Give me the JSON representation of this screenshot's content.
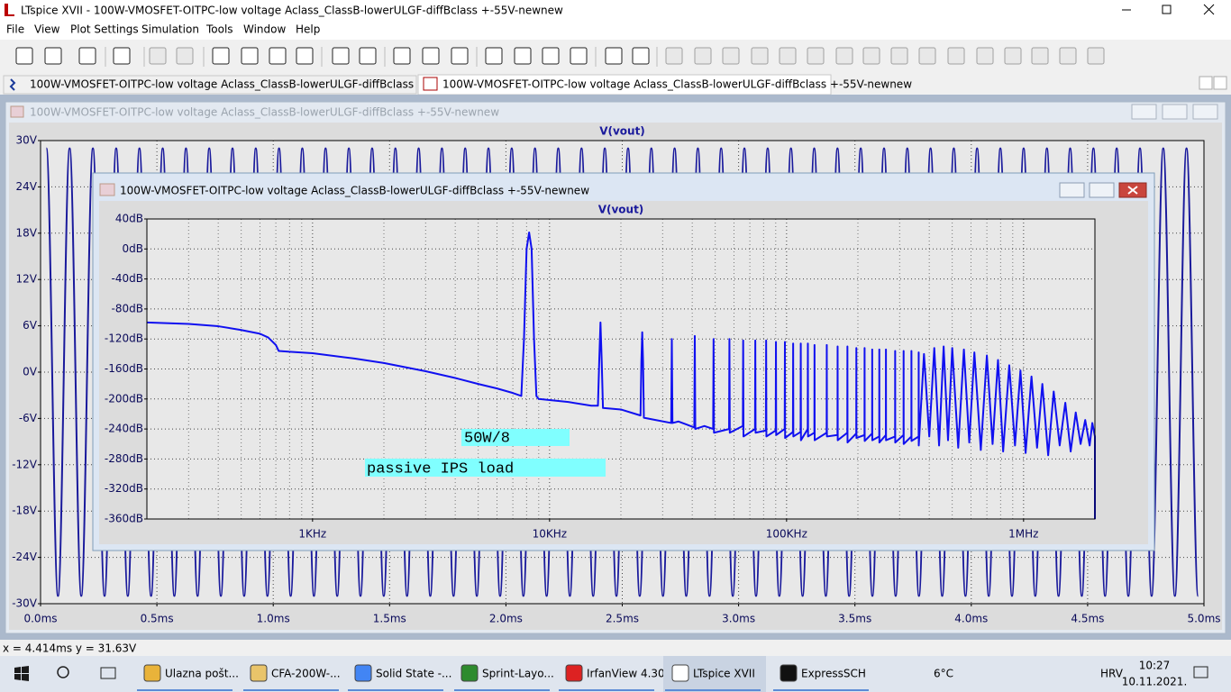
{
  "window": {
    "title": "LTspice XVII - 100W-VMOSFET-OITPC-low voltage Aclass_ClassB-lowerULGF-diffBclass +-55V-newnew"
  },
  "menu": [
    "File",
    "View",
    "Plot Settings",
    "Simulation",
    "Tools",
    "Window",
    "Help"
  ],
  "tabs": [
    "100W-VMOSFET-OITPC-low voltage Aclass_ClassB-lowerULGF-diffBclass +-55V-newnew",
    "100W-VMOSFET-OITPC-low voltage Aclass_ClassB-lowerULGF-diffBclass +-55V-newnew"
  ],
  "time_plot": {
    "window_title": "100W-VMOSFET-OITPC-low voltage Aclass_ClassB-lowerULGF-diffBclass +-55V-newnew",
    "chart_data": {
      "type": "line",
      "title": "V(vout)",
      "color": "#1a1a9c",
      "smooth": true,
      "grid": true,
      "x": [
        0.025,
        0.075,
        0.125,
        0.175,
        0.225,
        0.275,
        0.325,
        0.375,
        0.425,
        0.475,
        0.525,
        0.575,
        0.625,
        0.675,
        0.725,
        0.775,
        0.825,
        0.875,
        0.925,
        0.975,
        1.025,
        1.075,
        1.125,
        1.175,
        1.225,
        1.275,
        1.325,
        1.375,
        1.425,
        1.475,
        1.525,
        1.575,
        1.625,
        1.675,
        1.725,
        1.775,
        1.825,
        1.875,
        1.925,
        1.975,
        2.025,
        2.075,
        2.125,
        2.175,
        2.225,
        2.275,
        2.325,
        2.375,
        2.425,
        2.475,
        2.525,
        2.575,
        2.625,
        2.675,
        2.725,
        2.775,
        2.825,
        2.875,
        2.925,
        2.975,
        3.025,
        3.075,
        3.125,
        3.175,
        3.225,
        3.275,
        3.325,
        3.375,
        3.425,
        3.475,
        3.525,
        3.575,
        3.625,
        3.675,
        3.725,
        3.775,
        3.825,
        3.875,
        3.925,
        3.975,
        4.025,
        4.075,
        4.125,
        4.175,
        4.225,
        4.275,
        4.325,
        4.375,
        4.425,
        4.475,
        4.525,
        4.575,
        4.625,
        4.675,
        4.725,
        4.775,
        4.825,
        4.875,
        4.925,
        4.975
      ],
      "values": [
        29,
        -29,
        29,
        -29,
        29,
        -29,
        29,
        -29,
        29,
        -29,
        29,
        -29,
        29,
        -29,
        29,
        -29,
        29,
        -29,
        29,
        -29,
        29,
        -29,
        29,
        -29,
        29,
        -29,
        29,
        -29,
        29,
        -29,
        29,
        -29,
        29,
        -29,
        29,
        -29,
        29,
        -29,
        29,
        -29,
        29,
        -29,
        29,
        -29,
        29,
        -29,
        29,
        -29,
        29,
        -29,
        29,
        -29,
        29,
        -29,
        29,
        -29,
        29,
        -29,
        29,
        -29,
        29,
        -29,
        29,
        -29,
        29,
        -29,
        29,
        -29,
        29,
        -29,
        29,
        -29,
        29,
        -29,
        29,
        -29,
        29,
        -29,
        29,
        -29,
        29,
        -29,
        29,
        -29,
        29,
        -29,
        29,
        -29,
        29,
        -29,
        29,
        -29,
        29,
        -29,
        29,
        -29,
        29,
        -29,
        29,
        -29
      ],
      "xlim": [
        0,
        5
      ],
      "ylim": [
        -30,
        30
      ],
      "xticks": [
        {
          "value": 0,
          "label": "0.0ms"
        },
        {
          "value": 0.5,
          "label": "0.5ms"
        },
        {
          "value": 1,
          "label": "1.0ms"
        },
        {
          "value": 1.5,
          "label": "1.5ms"
        },
        {
          "value": 2,
          "label": "2.0ms"
        },
        {
          "value": 2.5,
          "label": "2.5ms"
        },
        {
          "value": 3,
          "label": "3.0ms"
        },
        {
          "value": 3.5,
          "label": "3.5ms"
        },
        {
          "value": 4,
          "label": "4.0ms"
        },
        {
          "value": 4.5,
          "label": "4.5ms"
        },
        {
          "value": 5,
          "label": "5.0ms"
        }
      ],
      "yticks": [
        {
          "value": 30,
          "label": "30V"
        },
        {
          "value": 24,
          "label": "24V"
        },
        {
          "value": 18,
          "label": "18V"
        },
        {
          "value": 12,
          "label": "12V"
        },
        {
          "value": 6,
          "label": "6V"
        },
        {
          "value": 0,
          "label": "0V"
        },
        {
          "value": -6,
          "label": "-6V"
        },
        {
          "value": -12,
          "label": "-12V"
        },
        {
          "value": -18,
          "label": "-18V"
        },
        {
          "value": -24,
          "label": "-24V"
        },
        {
          "value": -30,
          "label": "-30V"
        }
      ]
    }
  },
  "fft_plot": {
    "window_title": "100W-VMOSFET-OITPC-low voltage Aclass_ClassB-lowerULGF-diffBclass +-55V-newnew",
    "chart_data": {
      "type": "line",
      "title": "V(vout)",
      "color": "#1010f0",
      "smooth": false,
      "grid": true,
      "xscale": "log",
      "x": [
        200,
        300,
        400,
        500,
        600,
        650,
        700,
        720,
        800,
        1000,
        1500,
        2000,
        3000,
        4000,
        5000,
        6000,
        7000,
        7600,
        7800,
        8000,
        8200,
        8400,
        8600,
        8800,
        9000,
        12000,
        15000,
        16000,
        16200,
        16400,
        16600,
        16800,
        20000,
        24200,
        24400,
        24600,
        24800,
        25000,
        28000,
        32600,
        32800,
        33000,
        35000,
        40800,
        41000,
        41200,
        45000,
        49000,
        49200,
        49400,
        57200,
        57400,
        57600,
        65400,
        65600,
        65800,
        73600,
        73800,
        74000,
        81800,
        82000,
        82200,
        90000,
        90200,
        90400,
        98200,
        98400,
        98600,
        106400,
        106600,
        106800,
        114600,
        114800,
        115000,
        122800,
        123000,
        123200,
        131000,
        131200,
        131400,
        147600,
        147800,
        148000,
        164000,
        164200,
        164400,
        180400,
        180600,
        180800,
        196800,
        197000,
        197200,
        213200,
        213400,
        213600,
        229600,
        229800,
        230000,
        246000,
        246200,
        246400,
        262400,
        262600,
        262800,
        287000,
        287200,
        287400,
        311600,
        311800,
        312000,
        336200,
        336400,
        336600,
        360800,
        361000,
        361200,
        380000,
        400000,
        420000,
        440000,
        460000,
        480000,
        500000,
        530000,
        560000,
        590000,
        620000,
        660000,
        700000,
        740000,
        780000,
        820000,
        870000,
        920000,
        970000,
        1020000,
        1080000,
        1140000,
        1200000,
        1270000,
        1340000,
        1420000,
        1500000,
        1580000,
        1660000,
        1740000,
        1820000,
        1900000,
        1950000,
        2000000,
        2000000
      ],
      "values": [
        -98,
        -100,
        -103,
        -108,
        -113,
        -118,
        -128,
        -136,
        -137,
        -139,
        -146,
        -152,
        -163,
        -172,
        -180,
        -186,
        -192,
        -196,
        -120,
        0,
        22,
        0,
        -120,
        -196,
        -200,
        -204,
        -209,
        -209,
        -150,
        -98,
        -150,
        -212,
        -214,
        -222,
        -150,
        -111,
        -150,
        -225,
        -228,
        -232,
        -120,
        -232,
        -230,
        -238,
        -116,
        -240,
        -236,
        -240,
        -120,
        -245,
        -240,
        -120,
        -245,
        -236,
        -122,
        -250,
        -240,
        -122,
        -245,
        -242,
        -122,
        -250,
        -242,
        -124,
        -248,
        -240,
        -124,
        -252,
        -244,
        -126,
        -250,
        -244,
        -126,
        -255,
        -240,
        -126,
        -250,
        -245,
        -128,
        -255,
        -245,
        -128,
        -250,
        -248,
        -130,
        -255,
        -245,
        -130,
        -258,
        -246,
        -132,
        -252,
        -248,
        -132,
        -256,
        -246,
        -134,
        -255,
        -250,
        -134,
        -258,
        -248,
        -134,
        -255,
        -250,
        -136,
        -258,
        -248,
        -136,
        -260,
        -250,
        -136,
        -256,
        -250,
        -138,
        -262,
        -140,
        -250,
        -132,
        -262,
        -130,
        -255,
        -132,
        -265,
        -134,
        -258,
        -138,
        -268,
        -142,
        -260,
        -148,
        -270,
        -155,
        -262,
        -162,
        -272,
        -170,
        -265,
        -180,
        -275,
        -190,
        -262,
        -205,
        -270,
        -218,
        -260,
        -228,
        -262,
        -232,
        -250,
        -360
      ],
      "xlim": [
        200,
        2000000
      ],
      "ylim": [
        -360,
        40
      ],
      "xticks": [
        {
          "value": 1000,
          "label": "1KHz"
        },
        {
          "value": 10000,
          "label": "10KHz"
        },
        {
          "value": 100000,
          "label": "100KHz"
        },
        {
          "value": 1000000,
          "label": "1MHz"
        }
      ],
      "yticks": [
        {
          "value": 40,
          "label": "40dB"
        },
        {
          "value": 0,
          "label": "0dB"
        },
        {
          "value": -40,
          "label": "-40dB"
        },
        {
          "value": -80,
          "label": "-80dB"
        },
        {
          "value": -120,
          "label": "-120dB"
        },
        {
          "value": -160,
          "label": "-160dB"
        },
        {
          "value": -200,
          "label": "-200dB"
        },
        {
          "value": -240,
          "label": "-240dB"
        },
        {
          "value": -280,
          "label": "-280dB"
        },
        {
          "value": -320,
          "label": "-320dB"
        },
        {
          "value": -360,
          "label": "-360dB"
        }
      ]
    },
    "annotations": [
      "50W/8",
      "passive IPS load"
    ]
  },
  "status": "x = 4.414ms    y = 31.63V",
  "taskbar": {
    "apps": [
      "Ulazna pošt...",
      "CFA-200W-...",
      "Solid State -...",
      "Sprint-Layo...",
      "IrfanView 4.30",
      "LTspice XVII",
      "ExpressSCH"
    ],
    "weather": "6°C",
    "language": "HRV",
    "time": "10:27",
    "date": "10.11.2021."
  }
}
